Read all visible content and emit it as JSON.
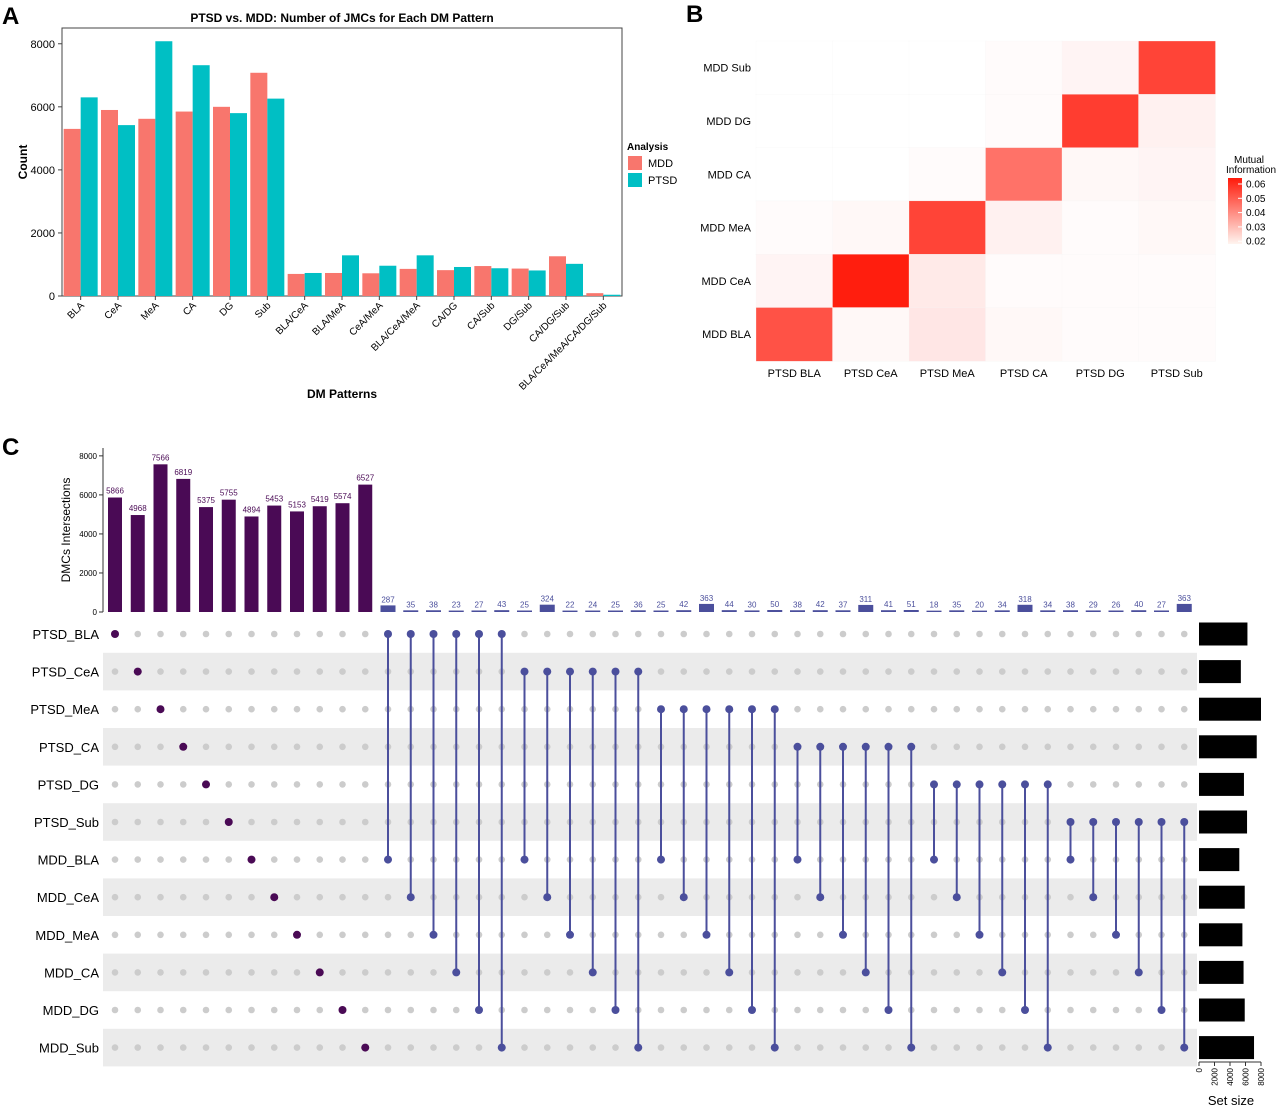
{
  "panels": {
    "a": "A",
    "b": "B",
    "c": "C"
  },
  "chart_data": [
    {
      "type": "bar",
      "title": "PTSD vs. MDD: Number of JMCs for Each DM Pattern",
      "xlabel": "DM Patterns",
      "ylabel": "Count",
      "categories": [
        "BLA",
        "CeA",
        "MeA",
        "CA",
        "DG",
        "Sub",
        "BLA/CeA",
        "BLA/MeA",
        "CeA/MeA",
        "BLA/CeA/MeA",
        "CA/DG",
        "CA/Sub",
        "DG/Sub",
        "CA/DG/Sub",
        "BLA/CeA/MeA/CA/DG/Sub"
      ],
      "ylim": [
        0,
        8500
      ],
      "yticks": [
        0,
        2000,
        4000,
        6000,
        8000
      ],
      "legend_title": "Analysis",
      "legend_position": "right",
      "grid": false,
      "series": [
        {
          "name": "MDD",
          "color": "#F8766D",
          "values": [
            5300,
            5900,
            5620,
            5850,
            6000,
            7080,
            700,
            730,
            720,
            860,
            820,
            950,
            870,
            1260,
            90
          ]
        },
        {
          "name": "PTSD",
          "color": "#00BFC4",
          "values": [
            6300,
            5420,
            8080,
            7320,
            5800,
            6260,
            730,
            1290,
            960,
            1290,
            920,
            880,
            810,
            1020,
            40
          ]
        }
      ]
    },
    {
      "type": "heatmap",
      "x_categories": [
        "PTSD BLA",
        "PTSD CeA",
        "PTSD MeA",
        "PTSD CA",
        "PTSD DG",
        "PTSD Sub"
      ],
      "y_categories": [
        "MDD Sub",
        "MDD DG",
        "MDD CA",
        "MDD MeA",
        "MDD CeA",
        "MDD BLA"
      ],
      "legend_title": [
        "Mutual",
        "Information"
      ],
      "legend_ticks": [
        "0.06",
        "0.05",
        "0.04",
        "0.03",
        "0.02"
      ],
      "color_low": "#ffffff",
      "color_high": "#ff1a0a",
      "value_range": [
        0.0,
        0.065
      ],
      "values": [
        [
          0.0,
          0.0,
          0.0,
          0.001,
          0.003,
          0.053
        ],
        [
          0.0,
          0.0,
          0.0,
          0.001,
          0.055,
          0.004
        ],
        [
          0.0,
          0.0,
          0.001,
          0.04,
          0.002,
          0.003
        ],
        [
          0.001,
          0.002,
          0.053,
          0.004,
          0.001,
          0.002
        ],
        [
          0.003,
          0.064,
          0.006,
          0.001,
          0.001,
          0.001
        ],
        [
          0.049,
          0.002,
          0.007,
          0.002,
          0.001,
          0.001
        ]
      ]
    },
    {
      "type": "upset",
      "ylabel": "DMCs Intersections",
      "size_label": "Set size",
      "bar_yticks": [
        0,
        2000,
        4000,
        6000,
        8000
      ],
      "size_ticks": [
        "0",
        "2000",
        "4000",
        "6000",
        "8000"
      ],
      "sets": [
        "PTSD_BLA",
        "PTSD_CeA",
        "PTSD_MeA",
        "PTSD_CA",
        "PTSD_DG",
        "PTSD_Sub",
        "MDD_BLA",
        "MDD_CeA",
        "MDD_MeA",
        "MDD_CA",
        "MDD_DG",
        "MDD_Sub"
      ],
      "set_sizes": [
        6250,
        5400,
        8000,
        7450,
        5800,
        6200,
        5200,
        5900,
        5600,
        5750,
        5900,
        7100
      ],
      "intersections": [
        {
          "size": 5866,
          "label": "5866",
          "sets": [
            0
          ]
        },
        {
          "size": 4968,
          "label": "4968",
          "sets": [
            1
          ]
        },
        {
          "size": 7566,
          "label": "7566",
          "sets": [
            2
          ]
        },
        {
          "size": 6819,
          "label": "6819",
          "sets": [
            3
          ]
        },
        {
          "size": 5375,
          "label": "5375",
          "sets": [
            4
          ]
        },
        {
          "size": 5755,
          "label": "5755",
          "sets": [
            5
          ]
        },
        {
          "size": 4894,
          "label": "4894",
          "sets": [
            6
          ]
        },
        {
          "size": 5453,
          "label": "5453",
          "sets": [
            7
          ]
        },
        {
          "size": 5153,
          "label": "5153",
          "sets": [
            8
          ]
        },
        {
          "size": 5419,
          "label": "5419",
          "sets": [
            9
          ]
        },
        {
          "size": 5574,
          "label": "5574",
          "sets": [
            10
          ]
        },
        {
          "size": 6527,
          "label": "6527",
          "sets": [
            11
          ]
        },
        {
          "size": 287,
          "label": "287",
          "sets": [
            0,
            6
          ]
        },
        {
          "size": 35,
          "label": "35",
          "sets": [
            0,
            7
          ]
        },
        {
          "size": 38,
          "label": "38",
          "sets": [
            0,
            8
          ]
        },
        {
          "size": 23,
          "label": "23",
          "sets": [
            0,
            9
          ]
        },
        {
          "size": 27,
          "label": "27",
          "sets": [
            0,
            10
          ]
        },
        {
          "size": 43,
          "label": "43",
          "sets": [
            0,
            11
          ]
        },
        {
          "size": 25,
          "label": "25",
          "sets": [
            1,
            6
          ]
        },
        {
          "size": 324,
          "label": "324",
          "sets": [
            1,
            7
          ]
        },
        {
          "size": 22,
          "label": "22",
          "sets": [
            1,
            8
          ]
        },
        {
          "size": 24,
          "label": "24",
          "sets": [
            1,
            9
          ]
        },
        {
          "size": 25,
          "label": "25",
          "sets": [
            1,
            10
          ]
        },
        {
          "size": 36,
          "label": "36",
          "sets": [
            1,
            11
          ]
        },
        {
          "size": 25,
          "label": "25",
          "sets": [
            2,
            6
          ]
        },
        {
          "size": 42,
          "label": "42",
          "sets": [
            2,
            7
          ]
        },
        {
          "size": 363,
          "label": "363",
          "sets": [
            2,
            8
          ]
        },
        {
          "size": 44,
          "label": "44",
          "sets": [
            2,
            9
          ]
        },
        {
          "size": 30,
          "label": "30",
          "sets": [
            2,
            10
          ]
        },
        {
          "size": 50,
          "label": "50",
          "sets": [
            2,
            11
          ]
        },
        {
          "size": 38,
          "label": "38",
          "sets": [
            3,
            6
          ]
        },
        {
          "size": 42,
          "label": "42",
          "sets": [
            3,
            7
          ]
        },
        {
          "size": 37,
          "label": "37",
          "sets": [
            3,
            8
          ]
        },
        {
          "size": 311,
          "label": "311",
          "sets": [
            3,
            9
          ]
        },
        {
          "size": 41,
          "label": "41",
          "sets": [
            3,
            10
          ]
        },
        {
          "size": 51,
          "label": "51",
          "sets": [
            3,
            11
          ]
        },
        {
          "size": 18,
          "label": "18",
          "sets": [
            4,
            6
          ]
        },
        {
          "size": 35,
          "label": "35",
          "sets": [
            4,
            7
          ]
        },
        {
          "size": 20,
          "label": "20",
          "sets": [
            4,
            8
          ]
        },
        {
          "size": 34,
          "label": "34",
          "sets": [
            4,
            9
          ]
        },
        {
          "size": 318,
          "label": "318",
          "sets": [
            4,
            10
          ]
        },
        {
          "size": 34,
          "label": "34",
          "sets": [
            4,
            11
          ]
        },
        {
          "size": 38,
          "label": "38",
          "sets": [
            5,
            6
          ]
        },
        {
          "size": 29,
          "label": "29",
          "sets": [
            5,
            7
          ]
        },
        {
          "size": 26,
          "label": "26",
          "sets": [
            5,
            8
          ]
        },
        {
          "size": 40,
          "label": "40",
          "sets": [
            5,
            9
          ]
        },
        {
          "size": 27,
          "label": "27",
          "sets": [
            5,
            10
          ]
        },
        {
          "size": 363,
          "label": "363",
          "sets": [
            5,
            11
          ]
        }
      ]
    }
  ],
  "colors": {
    "mdd": "#F8766D",
    "ptsd": "#00BFC4",
    "single": "#4a0a55",
    "pair": "#4b4f9c",
    "dot_inactive": "#cccccc",
    "stripe": "#ebebeb",
    "setbar": "#000000"
  }
}
